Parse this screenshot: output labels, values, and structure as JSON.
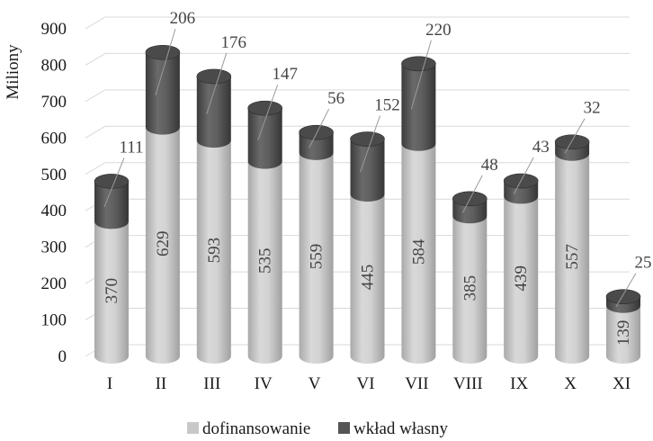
{
  "chart_data": {
    "type": "bar",
    "stacked": true,
    "style": "3d-cylinder",
    "categories": [
      "I",
      "II",
      "III",
      "IV",
      "V",
      "VI",
      "VII",
      "VIII",
      "IX",
      "X",
      "XI"
    ],
    "series": [
      {
        "name": "dofinansowanie",
        "values": [
          370,
          629,
          593,
          535,
          559,
          445,
          584,
          385,
          439,
          557,
          139
        ],
        "color": "#c8c8c8"
      },
      {
        "name": "wkład własny",
        "values": [
          111,
          206,
          176,
          147,
          56,
          152,
          220,
          48,
          43,
          32,
          25
        ],
        "color": "#555555"
      }
    ],
    "ylabel": "Miliony",
    "xlabel": "",
    "ylim": [
      0,
      900
    ],
    "yticks": [
      "0",
      "100",
      "200",
      "300",
      "400",
      "500",
      "600",
      "700",
      "800",
      "900"
    ],
    "grid": true,
    "legend_position": "bottom"
  }
}
